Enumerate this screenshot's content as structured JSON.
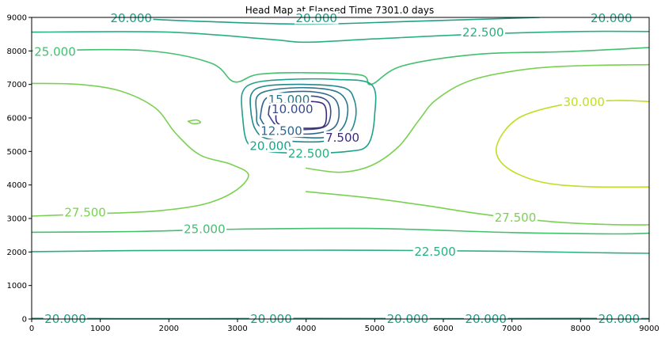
{
  "chart_data": {
    "type": "contour",
    "title": "Head Map at Elapsed Time 7301.0 days",
    "xlabel": "",
    "ylabel": "",
    "xlim": [
      0,
      9000
    ],
    "ylim": [
      0,
      9000
    ],
    "x_ticks": [
      "0",
      "1000",
      "2000",
      "3000",
      "4000",
      "5000",
      "6000",
      "7000",
      "8000",
      "9000"
    ],
    "y_ticks": [
      "0",
      "1000",
      "2000",
      "3000",
      "4000",
      "5000",
      "6000",
      "7000",
      "8000",
      "9000"
    ],
    "grid": false,
    "colors": {
      "7.500": "#3b2d7a",
      "10.000": "#3a4b8a",
      "12.500": "#31668e",
      "15.000": "#2a788e",
      "17.500": "#23898e",
      "20.000": "#21a08a",
      "22.500": "#2ab07f",
      "25.000": "#44bf70",
      "27.500": "#7ad151",
      "30.000": "#bddf26"
    },
    "contours": [
      {
        "level": "20.000",
        "points": [
          [
            0,
            20
          ],
          [
            2000,
            10
          ],
          [
            4000,
            20
          ],
          [
            6000,
            10
          ],
          [
            8000,
            20
          ],
          [
            9000,
            15
          ]
        ]
      },
      {
        "level": "22.500",
        "points": [
          [
            0,
            2010
          ],
          [
            1500,
            2040
          ],
          [
            3000,
            2050
          ],
          [
            5000,
            2050
          ],
          [
            7000,
            2020
          ],
          [
            8500,
            1970
          ],
          [
            9000,
            1960
          ]
        ]
      },
      {
        "level": "25.000",
        "points": [
          [
            0,
            2590
          ],
          [
            1500,
            2610
          ],
          [
            3000,
            2680
          ],
          [
            5000,
            2700
          ],
          [
            7000,
            2580
          ],
          [
            8500,
            2540
          ],
          [
            9000,
            2560
          ]
        ]
      },
      {
        "level": "27.500",
        "points": [
          [
            0,
            3070
          ],
          [
            900,
            3140
          ],
          [
            1800,
            3220
          ],
          [
            2500,
            3420
          ],
          [
            2950,
            3800
          ],
          [
            3160,
            4300
          ],
          [
            2900,
            4620
          ],
          [
            2450,
            4900
          ],
          [
            2100,
            5540
          ],
          [
            1800,
            6300
          ],
          [
            1300,
            6800
          ],
          [
            700,
            7000
          ],
          [
            0,
            7030
          ]
        ]
      },
      {
        "level": "27.500",
        "points": [
          [
            4000,
            3800
          ],
          [
            4900,
            3620
          ],
          [
            5700,
            3400
          ],
          [
            6600,
            3120
          ],
          [
            7600,
            2900
          ],
          [
            8400,
            2820
          ],
          [
            9000,
            2810
          ]
        ]
      },
      {
        "level": "27.500",
        "points": [
          [
            4000,
            4500
          ],
          [
            4500,
            4380
          ],
          [
            4950,
            4580
          ],
          [
            5350,
            5150
          ],
          [
            5650,
            5950
          ],
          [
            5900,
            6550
          ],
          [
            6400,
            7120
          ],
          [
            7200,
            7450
          ],
          [
            8000,
            7560
          ],
          [
            9000,
            7590
          ]
        ]
      },
      {
        "level": "27.500",
        "points": [
          [
            2280,
            5900
          ],
          [
            2400,
            5940
          ],
          [
            2460,
            5860
          ],
          [
            2350,
            5830
          ],
          [
            2280,
            5900
          ]
        ]
      },
      {
        "level": "30.000",
        "points": [
          [
            9000,
            6490
          ],
          [
            8500,
            6520
          ],
          [
            7800,
            6420
          ],
          [
            7100,
            6000
          ],
          [
            6780,
            5180
          ],
          [
            6900,
            4560
          ],
          [
            7400,
            4100
          ],
          [
            8100,
            3950
          ],
          [
            9000,
            3940
          ]
        ]
      },
      {
        "level": "25.000",
        "points": [
          [
            0,
            8000
          ],
          [
            1600,
            8020
          ],
          [
            2600,
            7650
          ],
          [
            2950,
            7080
          ],
          [
            3300,
            7300
          ],
          [
            4000,
            7350
          ],
          [
            4800,
            7280
          ],
          [
            4950,
            7000
          ],
          [
            5400,
            7550
          ],
          [
            6500,
            7900
          ],
          [
            7800,
            7980
          ],
          [
            9000,
            8100
          ]
        ]
      },
      {
        "level": "22.500",
        "points": [
          [
            0,
            8560
          ],
          [
            2000,
            8560
          ],
          [
            3500,
            8340
          ],
          [
            4000,
            8260
          ],
          [
            5000,
            8360
          ],
          [
            6500,
            8500
          ],
          [
            8000,
            8580
          ],
          [
            9000,
            8580
          ]
        ]
      },
      {
        "level": "20.000",
        "points": [
          [
            1200,
            9000
          ],
          [
            2500,
            8880
          ],
          [
            4000,
            8800
          ],
          [
            5500,
            8880
          ],
          [
            7400,
            9000
          ]
        ]
      },
      {
        "level": "20.000",
        "points": [
          [
            3070,
            6100
          ],
          [
            3070,
            6750
          ],
          [
            3250,
            7050
          ],
          [
            3750,
            7150
          ],
          [
            4400,
            7150
          ],
          [
            4950,
            7000
          ],
          [
            5000,
            6100
          ],
          [
            4900,
            5200
          ],
          [
            4600,
            5000
          ],
          [
            4000,
            4950
          ],
          [
            3450,
            5000
          ],
          [
            3150,
            5250
          ],
          [
            3070,
            6100
          ]
        ]
      },
      {
        "level": "17.500",
        "points": [
          [
            3200,
            6100
          ],
          [
            3200,
            6700
          ],
          [
            3400,
            6950
          ],
          [
            4000,
            7000
          ],
          [
            4550,
            6900
          ],
          [
            4700,
            6550
          ],
          [
            4720,
            6000
          ],
          [
            4600,
            5500
          ],
          [
            4250,
            5300
          ],
          [
            3800,
            5300
          ],
          [
            3400,
            5400
          ],
          [
            3250,
            5700
          ],
          [
            3200,
            6100
          ]
        ]
      },
      {
        "level": "15.000",
        "points": [
          [
            3280,
            6100
          ],
          [
            3290,
            6650
          ],
          [
            3550,
            6850
          ],
          [
            4050,
            6900
          ],
          [
            4450,
            6780
          ],
          [
            4600,
            6400
          ],
          [
            4560,
            5800
          ],
          [
            4350,
            5450
          ],
          [
            3950,
            5420
          ],
          [
            3500,
            5550
          ],
          [
            3300,
            5800
          ],
          [
            3280,
            6100
          ]
        ]
      },
      {
        "level": "12.500",
        "points": [
          [
            3330,
            6000
          ],
          [
            3400,
            6550
          ],
          [
            3650,
            6750
          ],
          [
            4100,
            6780
          ],
          [
            4400,
            6600
          ],
          [
            4480,
            6150
          ],
          [
            4400,
            5700
          ],
          [
            4100,
            5530
          ],
          [
            3700,
            5560
          ],
          [
            3420,
            5750
          ],
          [
            3330,
            6000
          ]
        ]
      },
      {
        "level": "10.000",
        "points": [
          [
            3450,
            6100
          ],
          [
            3500,
            6450
          ],
          [
            3750,
            6620
          ],
          [
            4150,
            6640
          ],
          [
            4330,
            6450
          ],
          [
            4350,
            6000
          ],
          [
            4250,
            5720
          ],
          [
            3900,
            5650
          ],
          [
            3600,
            5720
          ],
          [
            3450,
            6100
          ]
        ]
      },
      {
        "level": "7.500",
        "points": [
          [
            3560,
            6100
          ],
          [
            3580,
            6350
          ],
          [
            3800,
            6470
          ],
          [
            4150,
            6480
          ],
          [
            4280,
            6330
          ],
          [
            4280,
            5830
          ],
          [
            4150,
            5700
          ],
          [
            3750,
            5720
          ],
          [
            3580,
            5850
          ],
          [
            3560,
            6100
          ]
        ]
      }
    ],
    "labels": [
      {
        "text": "20.000",
        "level": "20.000",
        "x": 1450,
        "y": 8990
      },
      {
        "text": "20.000",
        "level": "20.000",
        "x": 4150,
        "y": 8990
      },
      {
        "text": "20.000",
        "level": "20.000",
        "x": 8450,
        "y": 8990
      },
      {
        "text": "22.500",
        "level": "22.500",
        "x": 6580,
        "y": 8560
      },
      {
        "text": "25.000",
        "level": "25.000",
        "x": 340,
        "y": 7990
      },
      {
        "text": "15.000",
        "level": "15.000",
        "x": 3750,
        "y": 6560
      },
      {
        "text": "10.000",
        "level": "10.000",
        "x": 3800,
        "y": 6270
      },
      {
        "text": "12.500",
        "level": "12.500",
        "x": 3640,
        "y": 5620
      },
      {
        "text": "7.500",
        "level": "7.500",
        "x": 4530,
        "y": 5420
      },
      {
        "text": "20.000",
        "level": "20.000",
        "x": 3480,
        "y": 5170
      },
      {
        "text": "22.500",
        "level": "22.500",
        "x": 4040,
        "y": 4950
      },
      {
        "text": "30.000",
        "level": "30.000",
        "x": 8050,
        "y": 6490
      },
      {
        "text": "27.500",
        "level": "27.500",
        "x": 780,
        "y": 3190
      },
      {
        "text": "27.500",
        "level": "27.500",
        "x": 7050,
        "y": 3030
      },
      {
        "text": "25.000",
        "level": "25.000",
        "x": 2520,
        "y": 2690
      },
      {
        "text": "22.500",
        "level": "22.500",
        "x": 5880,
        "y": 2020
      },
      {
        "text": "20.000",
        "level": "20.000",
        "x": 490,
        "y": 10
      },
      {
        "text": "20.000",
        "level": "20.000",
        "x": 3490,
        "y": 10
      },
      {
        "text": "20.000",
        "level": "20.000",
        "x": 5480,
        "y": 10
      },
      {
        "text": "20.000",
        "level": "20.000",
        "x": 6620,
        "y": 10
      },
      {
        "text": "20.000",
        "level": "20.000",
        "x": 8560,
        "y": 10
      }
    ]
  }
}
